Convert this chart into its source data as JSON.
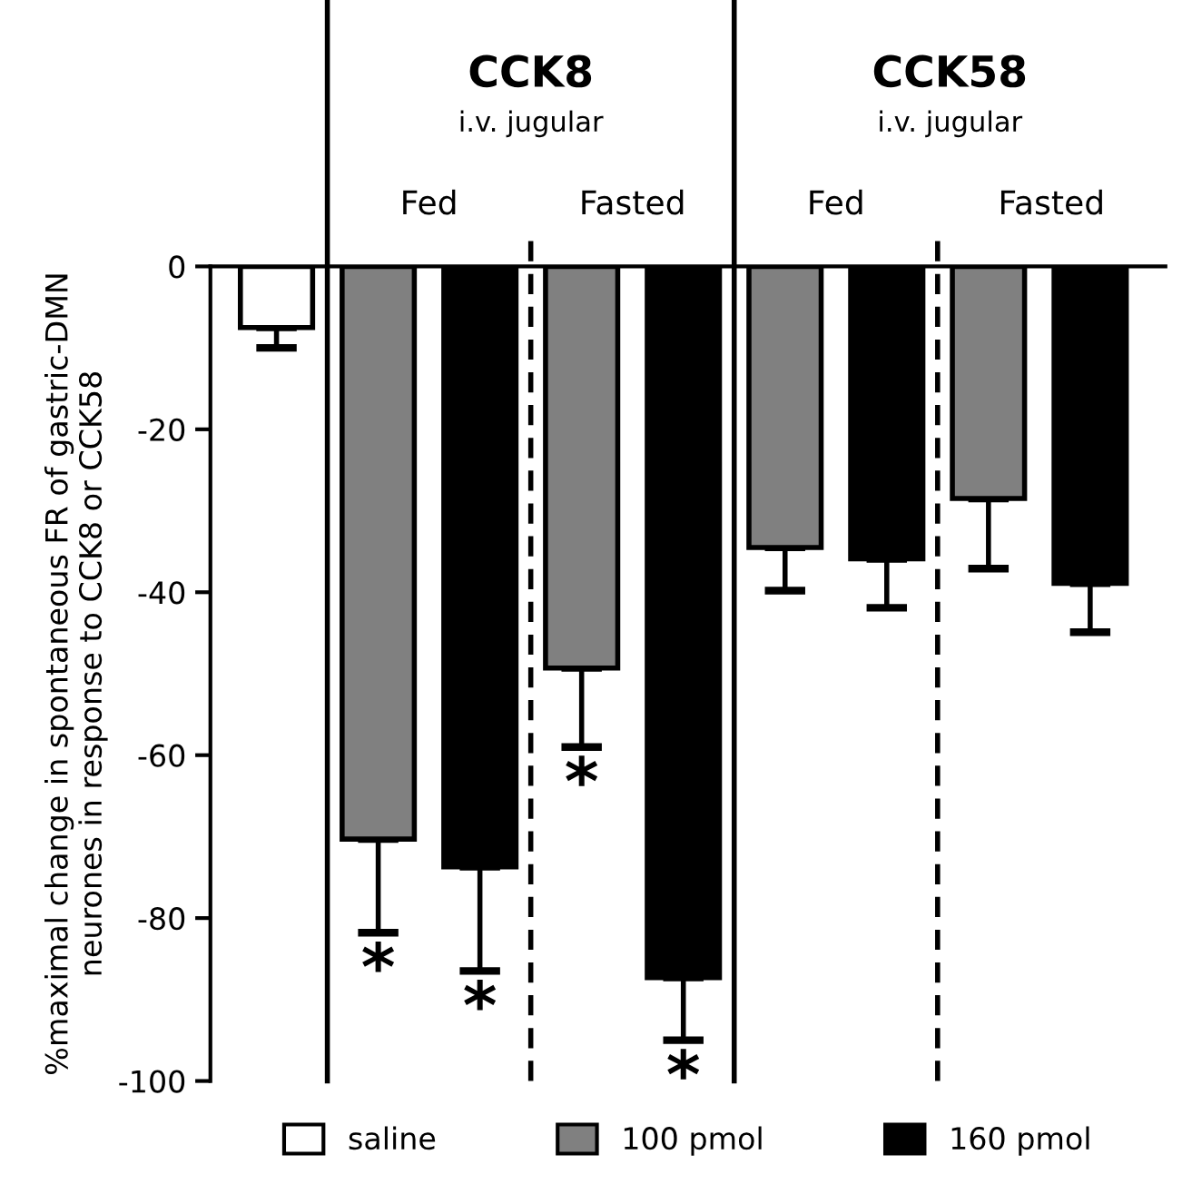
{
  "chart_data": {
    "type": "bar",
    "ylabel": "%maximal change in spontaneous FR of gastric-DMN\nneurones in response to CCK8 or CCK58",
    "categories": [
      null,
      null,
      null,
      null,
      null,
      null,
      null,
      null,
      null
    ],
    "series": [
      {
        "name": "saline",
        "color": "#ffffff",
        "values": [
          -7.5,
          null,
          null,
          null,
          null,
          null,
          null,
          null,
          null
        ],
        "errors": [
          [
            -10,
            -7.5
          ],
          null,
          null,
          null,
          null,
          null,
          null,
          null,
          null
        ],
        "value_labels": [
          null,
          null,
          null,
          null,
          null,
          null,
          null,
          null,
          null
        ]
      },
      {
        "name": "100 pmol",
        "color": "#808080",
        "values": [
          null,
          -70.3,
          null,
          -49.3,
          null,
          -34.5,
          null,
          -28.5,
          null
        ],
        "errors": [
          null,
          [
            -81.8,
            -70.3
          ],
          null,
          [
            -59,
            -49.3
          ],
          null,
          [
            -39.8,
            -34.5
          ],
          null,
          [
            -37.1,
            -28.5
          ],
          null
        ],
        "value_labels": [
          null,
          "*",
          null,
          "*",
          null,
          null,
          null,
          null,
          null
        ]
      },
      {
        "name": "160 pmol",
        "color": "#000000",
        "values": [
          null,
          null,
          -73.7,
          null,
          -87.3,
          null,
          -35.9,
          null,
          -38.9
        ],
        "errors": [
          null,
          null,
          [
            -86.5,
            -73.7
          ],
          null,
          [
            -95,
            -87.3
          ],
          null,
          [
            -41.9,
            -35.9
          ],
          null,
          [
            -44.9,
            -38.9
          ]
        ],
        "value_labels": [
          null,
          null,
          "*",
          null,
          "*",
          null,
          null,
          null,
          null
        ]
      }
    ],
    "ylim": [
      -100,
      0
    ],
    "yticks": [
      0,
      -20,
      -40,
      -60,
      -80,
      -100
    ],
    "annotations": [
      "CCK8",
      "i.v. jugular",
      "Fed",
      "Fasted",
      "CCK58",
      "i.v. jugular",
      "Fed",
      "Fasted"
    ],
    "grid": false,
    "legend": "bottom"
  }
}
